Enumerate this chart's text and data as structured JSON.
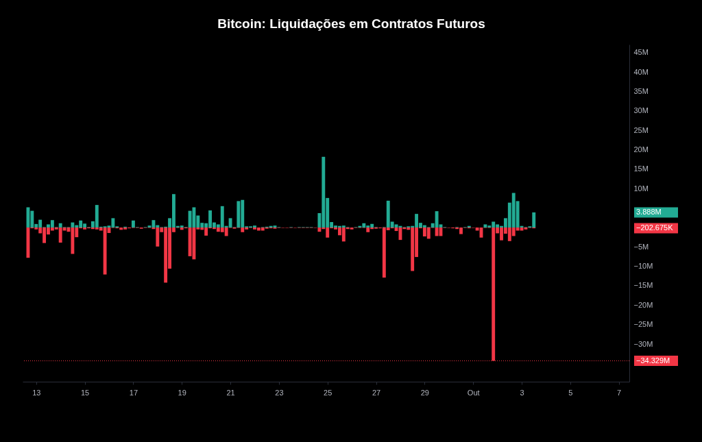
{
  "chart_data": {
    "type": "bar",
    "title": "Bitcoin: Liquidações em Contratos Futuros",
    "x": [
      "--09-12T16:00",
      "--09-12T20:00",
      "--09-13T00:00",
      "--09-13T04:00",
      "--09-13T08:00",
      "--09-13T12:00",
      "--09-13T16:00",
      "--09-13T20:00",
      "--09-14T00:00",
      "--09-14T04:00",
      "--09-14T08:00",
      "--09-14T12:00",
      "--09-14T16:00",
      "--09-14T20:00",
      "--09-15T00:00",
      "--09-15T04:00",
      "--09-15T08:00",
      "--09-15T12:00",
      "--09-15T16:00",
      "--09-15T20:00",
      "--09-16T00:00",
      "--09-16T04:00",
      "--09-16T08:00",
      "--09-16T12:00",
      "--09-16T16:00",
      "--09-16T20:00",
      "--09-17T00:00",
      "--09-17T04:00",
      "--09-17T08:00",
      "--09-17T12:00",
      "--09-17T16:00",
      "--09-17T20:00",
      "--09-18T00:00",
      "--09-18T04:00",
      "--09-18T08:00",
      "--09-18T12:00",
      "--09-18T16:00",
      "--09-18T20:00",
      "--09-19T00:00",
      "--09-19T04:00",
      "--09-19T08:00",
      "--09-19T12:00",
      "--09-19T16:00",
      "--09-19T20:00",
      "--09-20T00:00",
      "--09-20T04:00",
      "--09-20T08:00",
      "--09-20T12:00",
      "--09-20T16:00",
      "--09-20T20:00",
      "--09-21T00:00",
      "--09-21T04:00",
      "--09-21T08:00",
      "--09-21T12:00",
      "--09-21T16:00",
      "--09-21T20:00",
      "--09-22T00:00",
      "--09-22T04:00",
      "--09-22T08:00",
      "--09-22T12:00",
      "--09-22T16:00",
      "--09-22T20:00",
      "--09-23T00:00",
      "--09-23T04:00",
      "--09-23T08:00",
      "--09-23T12:00",
      "--09-23T16:00",
      "--09-23T20:00",
      "--09-24T00:00",
      "--09-24T04:00",
      "--09-24T08:00",
      "--09-24T12:00",
      "--09-24T16:00",
      "--09-24T20:00",
      "--09-25T00:00",
      "--09-25T04:00",
      "--09-25T08:00",
      "--09-25T12:00",
      "--09-25T16:00",
      "--09-25T20:00",
      "--09-26T00:00",
      "--09-26T04:00",
      "--09-26T08:00",
      "--09-26T12:00",
      "--09-26T16:00",
      "--09-26T20:00",
      "--09-27T00:00",
      "--09-27T04:00",
      "--09-27T08:00",
      "--09-27T12:00",
      "--09-27T16:00",
      "--09-27T20:00",
      "--09-28T00:00",
      "--09-28T04:00",
      "--09-28T08:00",
      "--09-28T12:00",
      "--09-28T16:00",
      "--09-28T20:00",
      "--09-29T00:00",
      "--09-29T04:00",
      "--09-29T08:00",
      "--09-29T12:00",
      "--09-29T16:00",
      "--09-29T20:00",
      "--09-30T00:00",
      "--09-30T04:00",
      "--09-30T08:00",
      "--09-30T12:00",
      "--09-30T16:00",
      "--09-30T20:00",
      "--10-01T00:00",
      "--10-01T04:00",
      "--10-01T08:00",
      "--10-01T12:00",
      "--10-01T16:00",
      "--10-01T20:00",
      "--10-02T00:00",
      "--10-02T04:00",
      "--10-02T08:00",
      "--10-02T12:00",
      "--10-02T16:00",
      "--10-02T20:00",
      "--10-03T00:00",
      "--10-03T04:00",
      "--10-03T08:00",
      "--10-03T12:00"
    ],
    "series": [
      {
        "color": "#22ab94",
        "values": [
          5.2,
          4.3,
          0.9,
          2.0,
          0.1,
          0.8,
          1.9,
          0.1,
          1.1,
          0.1,
          0.1,
          1.3,
          0.6,
          1.8,
          1.0,
          0.1,
          1.6,
          5.8,
          0.2,
          0.3,
          0.5,
          2.4,
          0.3,
          0,
          0.2,
          0,
          1.8,
          0.1,
          0,
          0.1,
          0.5,
          1.9,
          0.6,
          0.1,
          0.2,
          2.4,
          8.6,
          0.4,
          0.5,
          0.1,
          4.3,
          5.2,
          3.1,
          1.2,
          1.1,
          4.4,
          1.3,
          0.8,
          5.5,
          0.4,
          2.4,
          0.1,
          6.8,
          7.1,
          0.3,
          0.3,
          0.5,
          0,
          0.1,
          0.2,
          0.4,
          0.5,
          0.1,
          0,
          0,
          0.1,
          0,
          0.1,
          0.1,
          0.1,
          0.1,
          0,
          3.7,
          18.2,
          7.6,
          1.4,
          0.5,
          0.4,
          0.5,
          0.1,
          0,
          0.1,
          0.4,
          1.1,
          0.5,
          0.9,
          0.1,
          0,
          0.1,
          6.9,
          1.5,
          0.8,
          0.4,
          0.1,
          0.3,
          0.4,
          3.5,
          1.2,
          0.6,
          0.1,
          1.1,
          4.2,
          0.8,
          0.1,
          0,
          0,
          0.1,
          0,
          0.1,
          0.4,
          0,
          0,
          0,
          0.8,
          0.5,
          1.5,
          0.8,
          0.4,
          2.4,
          6.4,
          8.9,
          6.8,
          0.4,
          0.1,
          0.3,
          3.888
        ]
      },
      {
        "color": "#f23645",
        "values": [
          -7.8,
          -0.2,
          -0.5,
          -1.5,
          -4.0,
          -1.8,
          -0.8,
          -0.5,
          -3.9,
          -0.8,
          -1.1,
          -6.8,
          -2.5,
          -0.2,
          -0.5,
          -0.2,
          -0.4,
          -0.5,
          -0.8,
          -12.1,
          -1.4,
          -0.1,
          -0.2,
          -0.6,
          -0.5,
          -0.2,
          -0.1,
          -0.1,
          -0.3,
          -0.1,
          -0.1,
          -0.4,
          -4.9,
          -1.2,
          -14.2,
          -10.6,
          -1.2,
          -0.1,
          -0.6,
          -0.2,
          -7.4,
          -8.2,
          -0.5,
          -0.6,
          -2.1,
          -0.2,
          -0.4,
          -1.1,
          -1.2,
          -2.2,
          -0.1,
          -0.3,
          -0.1,
          -1.2,
          -0.5,
          -0.1,
          -0.5,
          -0.8,
          -0.8,
          -0.3,
          -0.2,
          -0.3,
          -0.1,
          -0.1,
          -0.1,
          -0.1,
          -0.1,
          -0.1,
          -0.1,
          -0.1,
          -0.1,
          -0.1,
          -1.1,
          -0.4,
          -2.6,
          -0.2,
          -0.5,
          -2.0,
          -3.6,
          -0.4,
          -0.5,
          -0.1,
          -0.1,
          -0.1,
          -1.2,
          -0.4,
          -0.3,
          -0.2,
          -12.9,
          -0.7,
          -0.2,
          -0.9,
          -3.2,
          -0.4,
          -0.6,
          -11.2,
          -7.6,
          -0.2,
          -2.3,
          -2.9,
          -0.1,
          -2.2,
          -2.2,
          -0.1,
          -0.1,
          -0.2,
          -0.4,
          -1.7,
          -0.1,
          -0.2,
          -0.1,
          -0.8,
          -2.6,
          -0.1,
          -0.1,
          -34.329,
          -1.5,
          -3.3,
          -1.6,
          -3.5,
          -2.2,
          -0.8,
          -0.8,
          -0.5,
          -0.1,
          -0.202675
        ]
      }
    ],
    "xlim": [
      "--09-12T14:00",
      "--10-07T07:00"
    ],
    "xticks": [
      {
        "value": "--09-13",
        "label": "13"
      },
      {
        "value": "--09-15",
        "label": "15"
      },
      {
        "value": "--09-17",
        "label": "17"
      },
      {
        "value": "--09-19",
        "label": "19"
      },
      {
        "value": "--09-21",
        "label": "21"
      },
      {
        "value": "--09-23",
        "label": "23"
      },
      {
        "value": "--09-25",
        "label": "25"
      },
      {
        "value": "--09-27",
        "label": "27"
      },
      {
        "value": "--09-29",
        "label": "29"
      },
      {
        "value": "--10-01",
        "label": "Out"
      },
      {
        "value": "--10-03",
        "label": "3"
      },
      {
        "value": "--10-05",
        "label": "5"
      },
      {
        "value": "--10-07",
        "label": "7"
      }
    ],
    "ylim": [
      -39.7,
      47.1
    ],
    "yticks": [
      {
        "value": 45,
        "label": "45M"
      },
      {
        "value": 40,
        "label": "40M"
      },
      {
        "value": 35,
        "label": "35M"
      },
      {
        "value": 30,
        "label": "30M"
      },
      {
        "value": 25,
        "label": "25M"
      },
      {
        "value": 20,
        "label": "20M"
      },
      {
        "value": 15,
        "label": "15M"
      },
      {
        "value": 10,
        "label": "10M"
      },
      {
        "value": -5,
        "label": "−5M"
      },
      {
        "value": -10,
        "label": "−10M"
      },
      {
        "value": -15,
        "label": "−15M"
      },
      {
        "value": -20,
        "label": "−20M"
      },
      {
        "value": -25,
        "label": "−25M"
      },
      {
        "value": -30,
        "label": "−30M"
      }
    ],
    "annotations": [
      "3.888M",
      "−202.675K"
    ],
    "ref_lines": [
      {
        "axis": "y",
        "value": -34.329,
        "label": "−34.329M",
        "color": "#f23645",
        "line_style": "dotted"
      }
    ]
  }
}
